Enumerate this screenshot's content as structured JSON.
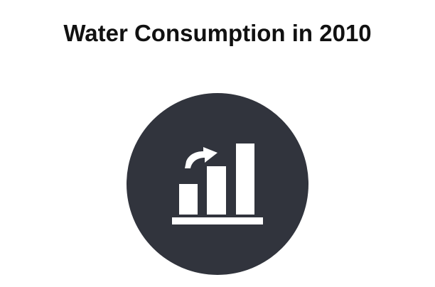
{
  "slide": {
    "title": "Water Consumption in 2010",
    "icon": "growth-bar-chart-icon",
    "colors": {
      "circle": "#31343d",
      "glyph": "#ffffff",
      "title": "#111111",
      "background": "#ffffff"
    }
  }
}
